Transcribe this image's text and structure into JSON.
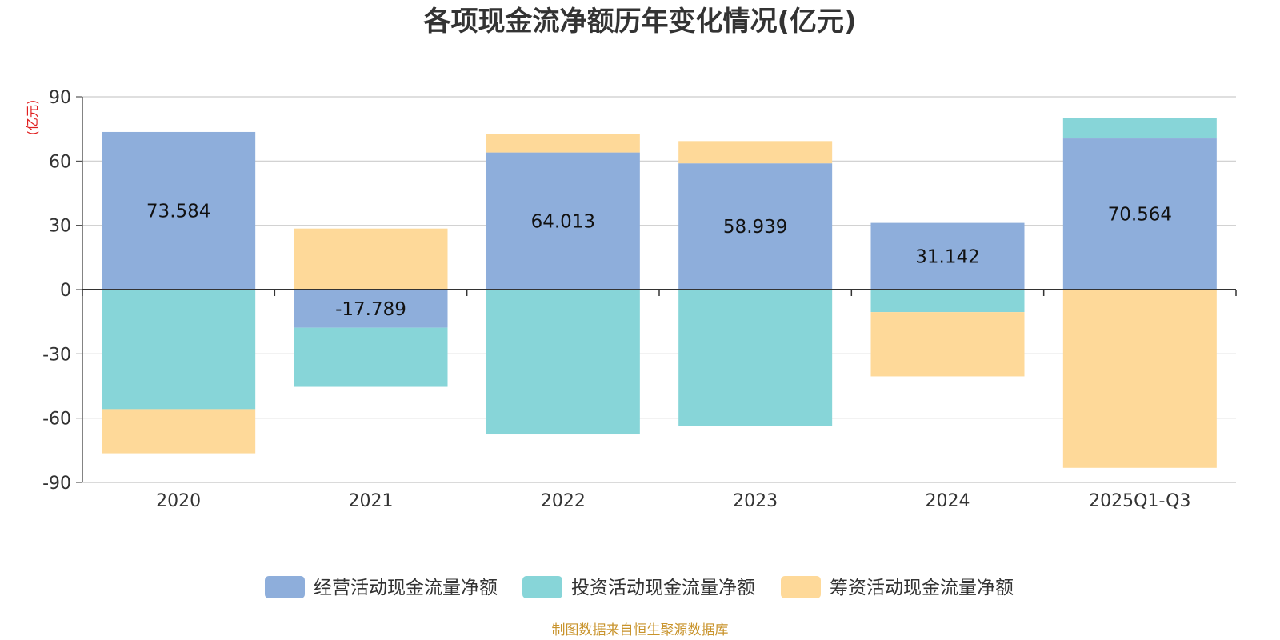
{
  "chart_data": {
    "type": "bar",
    "stacked": true,
    "title": "各项现金流净额历年变化情况(亿元)",
    "ylabel": "(亿元)",
    "xlabel": "",
    "ylim": [
      -90,
      90
    ],
    "yticks": [
      90,
      60,
      30,
      0,
      -30,
      -60,
      -90
    ],
    "grid": true,
    "legend_position": "bottom",
    "categories": [
      "2020",
      "2021",
      "2022",
      "2023",
      "2024",
      "2025Q1-Q3"
    ],
    "series": [
      {
        "name": "经营活动现金流量净额",
        "color": "#8eaedb",
        "values": [
          73.584,
          -17.789,
          64.013,
          58.939,
          31.142,
          70.564
        ],
        "show_labels": true
      },
      {
        "name": "投资活动现金流量净额",
        "color": "#87d5d8",
        "values": [
          -55.8,
          -27.6,
          -67.6,
          -63.8,
          -10.5,
          9.5
        ],
        "show_labels": false
      },
      {
        "name": "筹资活动现金流量净额",
        "color": "#fed999",
        "values": [
          -20.6,
          28.5,
          8.5,
          10.4,
          -30.0,
          -83.2
        ],
        "show_labels": false
      }
    ],
    "data_labels": [
      "73.584",
      "-17.789",
      "64.013",
      "58.939",
      "31.142",
      "70.564"
    ]
  },
  "source_note": "制图数据来自恒生聚源数据库"
}
